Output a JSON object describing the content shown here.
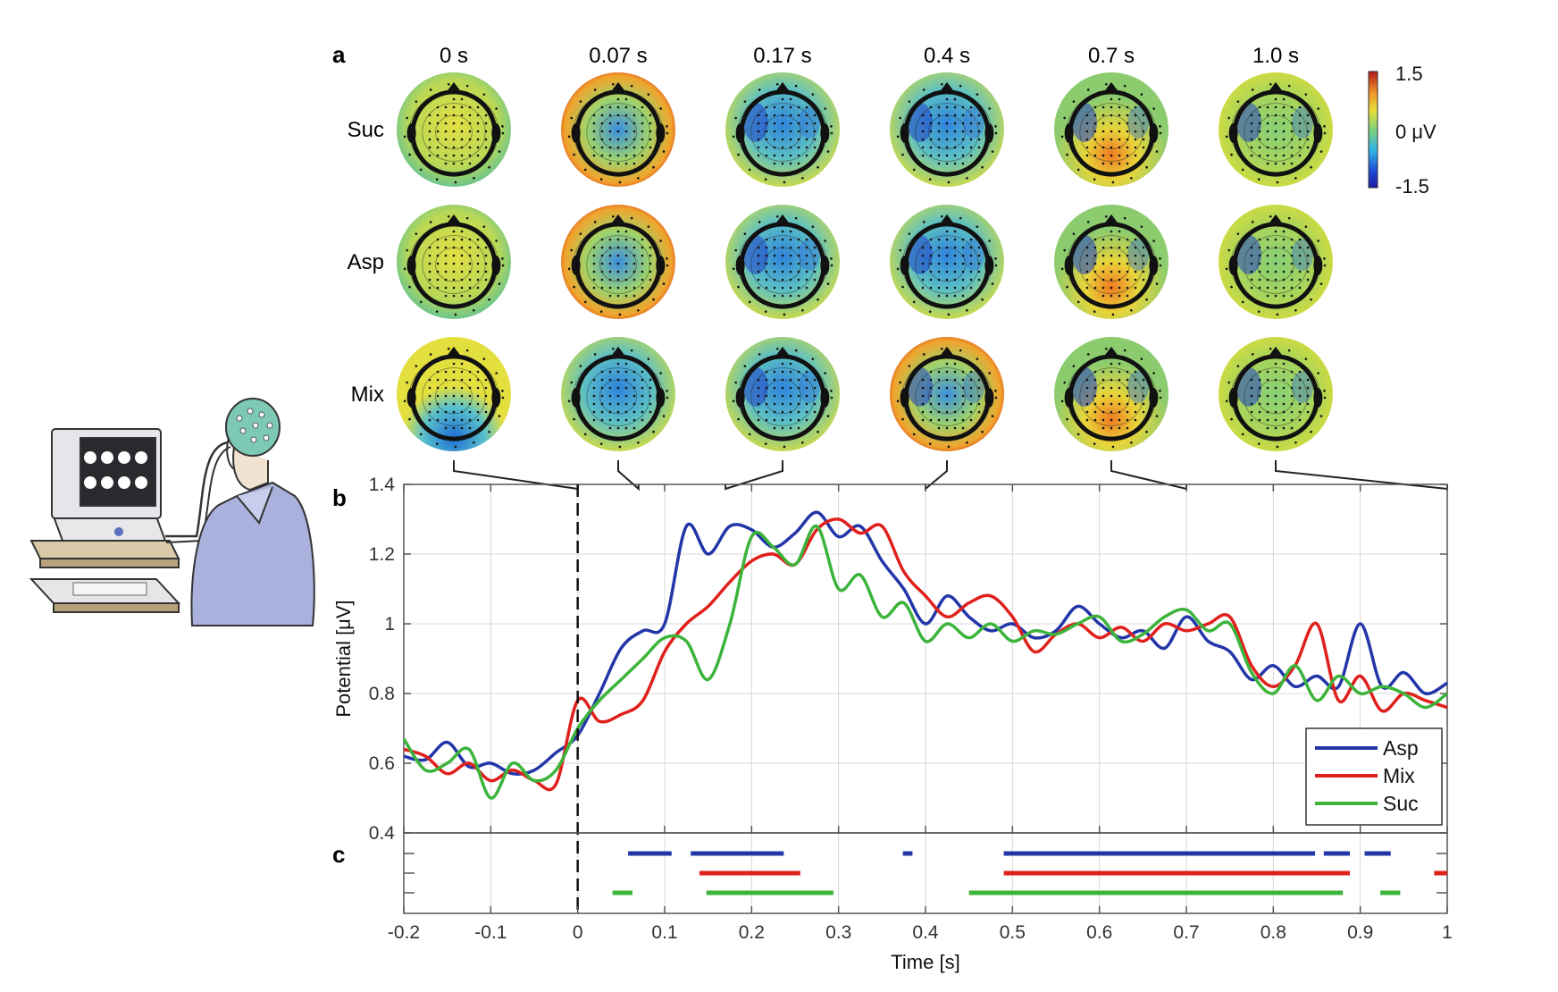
{
  "panels": {
    "a": "a",
    "b": "b",
    "c": "c"
  },
  "colors": {
    "Asp": "#2236a8",
    "Mix": "#e0201c",
    "Suc": "#3cb43c",
    "axis": "#555555",
    "grid": "#d8d8d8",
    "baseline_marker": "#111111"
  },
  "icons": [
    "computer-monitor-icon",
    "eeg-subject-illustration"
  ],
  "topomaps": {
    "times": [
      "0 s",
      "0.07 s",
      "0.17 s",
      "0.4 s",
      "0.7 s",
      "1.0 s"
    ],
    "time_values": [
      0,
      0.07,
      0.17,
      0.4,
      0.7,
      1.0
    ],
    "rows": [
      "Suc",
      "Asp",
      "Mix"
    ],
    "colorbar": {
      "max_label": "1.5",
      "mid_label": "0 μV",
      "min_label": "-1.5",
      "range": [
        -1.5,
        1.5
      ],
      "colormap": "jet"
    }
  },
  "chart_data": [
    {
      "type": "line",
      "panel": "b",
      "xlabel": "Time [s]",
      "ylabel": "Potential [μV]",
      "xlim": [
        -0.2,
        1.0
      ],
      "ylim": [
        0.4,
        1.4
      ],
      "xticks": [
        -0.2,
        -0.1,
        0,
        0.1,
        0.2,
        0.3,
        0.4,
        0.5,
        0.6,
        0.7,
        0.8,
        0.9,
        1.0
      ],
      "xtick_labels": [
        "-0.2",
        "-0.1",
        "0",
        "0.1",
        "0.2",
        "0.3",
        "0.4",
        "0.5",
        "0.6",
        "0.7",
        "0.8",
        "0.9",
        "1"
      ],
      "yticks": [
        0.4,
        0.6,
        0.8,
        1.0,
        1.2,
        1.4
      ],
      "ytick_labels": [
        "0.4",
        "0.6",
        "0.8",
        "1",
        "1.2",
        "1.4"
      ],
      "grid": true,
      "legend_position": "bottom-right",
      "stimulus_onset": 0,
      "x": [
        -0.2,
        -0.175,
        -0.15,
        -0.125,
        -0.1,
        -0.075,
        -0.05,
        -0.025,
        0,
        0.025,
        0.05,
        0.075,
        0.1,
        0.125,
        0.15,
        0.175,
        0.2,
        0.225,
        0.25,
        0.275,
        0.3,
        0.325,
        0.35,
        0.375,
        0.4,
        0.425,
        0.45,
        0.475,
        0.5,
        0.525,
        0.55,
        0.575,
        0.6,
        0.625,
        0.65,
        0.675,
        0.7,
        0.725,
        0.75,
        0.775,
        0.8,
        0.825,
        0.85,
        0.875,
        0.9,
        0.925,
        0.95,
        0.975,
        1.0
      ],
      "series": [
        {
          "name": "Asp",
          "values": [
            0.62,
            0.61,
            0.66,
            0.59,
            0.6,
            0.57,
            0.58,
            0.63,
            0.68,
            0.8,
            0.93,
            0.98,
            1.0,
            1.28,
            1.2,
            1.28,
            1.27,
            1.22,
            1.26,
            1.32,
            1.25,
            1.28,
            1.18,
            1.1,
            1.0,
            1.08,
            1.02,
            0.98,
            1.0,
            0.96,
            0.98,
            1.05,
            1.0,
            0.96,
            0.98,
            0.93,
            1.02,
            0.95,
            0.92,
            0.84,
            0.88,
            0.82,
            0.85,
            0.82,
            1.0,
            0.82,
            0.86,
            0.8,
            0.83
          ]
        },
        {
          "name": "Mix",
          "values": [
            0.64,
            0.62,
            0.57,
            0.6,
            0.55,
            0.58,
            0.55,
            0.54,
            0.78,
            0.72,
            0.74,
            0.78,
            0.92,
            1.0,
            1.05,
            1.12,
            1.18,
            1.2,
            1.17,
            1.27,
            1.3,
            1.26,
            1.28,
            1.15,
            1.08,
            1.02,
            1.06,
            1.08,
            1.02,
            0.92,
            0.97,
            1.0,
            0.96,
            0.99,
            0.95,
            1.0,
            0.98,
            1.0,
            1.02,
            0.88,
            0.82,
            0.88,
            1.0,
            0.78,
            0.85,
            0.75,
            0.8,
            0.78,
            0.76
          ]
        },
        {
          "name": "Suc",
          "values": [
            0.67,
            0.58,
            0.6,
            0.64,
            0.5,
            0.6,
            0.55,
            0.58,
            0.7,
            0.78,
            0.84,
            0.9,
            0.96,
            0.95,
            0.84,
            1.0,
            1.25,
            1.22,
            1.17,
            1.28,
            1.1,
            1.14,
            1.02,
            1.06,
            0.95,
            1.0,
            0.96,
            1.0,
            0.95,
            0.98,
            0.97,
            1.0,
            1.02,
            0.95,
            0.97,
            1.02,
            1.04,
            0.98,
            1.0,
            0.86,
            0.8,
            0.88,
            0.78,
            0.85,
            0.8,
            0.82,
            0.8,
            0.76,
            0.8
          ]
        }
      ],
      "legend": [
        "Asp",
        "Mix",
        "Suc"
      ]
    },
    {
      "type": "segments",
      "panel": "c",
      "xlim": [
        -0.2,
        1.0
      ],
      "rows": [
        "Asp",
        "Mix",
        "Suc"
      ],
      "segments": {
        "Asp": [
          [
            0.058,
            0.108
          ],
          [
            0.13,
            0.237
          ],
          [
            0.374,
            0.385
          ],
          [
            0.49,
            0.848
          ],
          [
            0.858,
            0.888
          ],
          [
            0.905,
            0.935
          ]
        ],
        "Mix": [
          [
            0.14,
            0.256
          ],
          [
            0.49,
            0.888
          ],
          [
            0.985,
            1.0
          ]
        ],
        "Suc": [
          [
            0.04,
            0.063
          ],
          [
            0.148,
            0.294
          ],
          [
            0.45,
            0.88
          ],
          [
            0.923,
            0.946
          ]
        ]
      }
    }
  ]
}
